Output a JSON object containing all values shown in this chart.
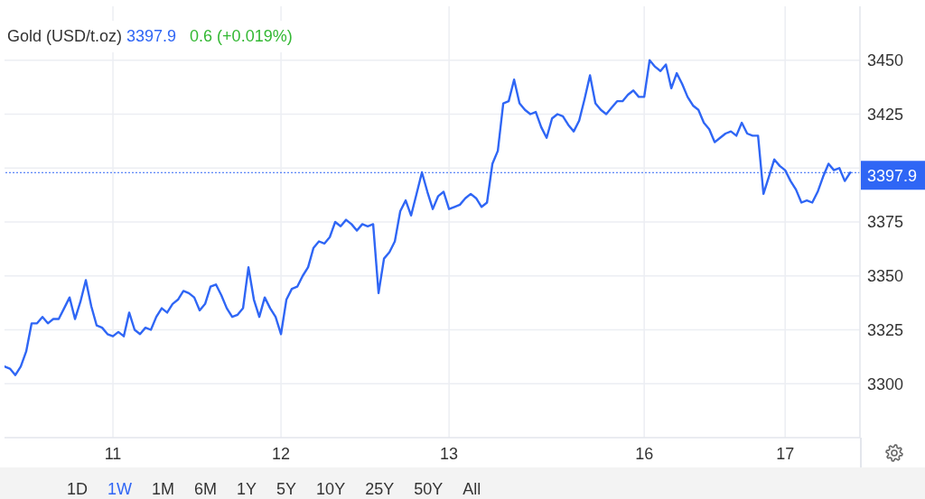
{
  "chart_data": {
    "type": "line",
    "title": "Gold (USD/t.oz)",
    "annotations": [
      "3397.9",
      "0.6 (+0.019%)",
      "1D",
      "1W",
      "1M",
      "6M",
      "1Y",
      "5Y",
      "10Y",
      "25Y",
      "50Y",
      "All"
    ],
    "categories": [
      null,
      null,
      null,
      null,
      null,
      null,
      null,
      null,
      null,
      null,
      null,
      null,
      null,
      null,
      null,
      null,
      null,
      null,
      null,
      null,
      "11",
      null,
      null,
      null,
      null,
      null,
      null,
      null,
      null,
      null,
      null,
      null,
      null,
      null,
      null,
      null,
      null,
      null,
      null,
      null,
      null,
      null,
      null,
      null,
      null,
      null,
      null,
      null,
      null,
      null,
      null,
      "12",
      null,
      null,
      null,
      null,
      null,
      null,
      null,
      null,
      null,
      null,
      null,
      null,
      null,
      null,
      null,
      null,
      null,
      null,
      null,
      null,
      null,
      null,
      null,
      null,
      null,
      null,
      null,
      null,
      null,
      null,
      "13",
      null,
      null,
      null,
      null,
      null,
      null,
      null,
      null,
      null,
      null,
      null,
      null,
      null,
      null,
      null,
      null,
      null,
      null,
      null,
      null,
      null,
      null,
      null,
      null,
      null,
      null,
      null,
      null,
      null,
      null,
      null,
      null,
      null,
      null,
      null,
      "16",
      null,
      null,
      null,
      null,
      null,
      null,
      null,
      null,
      null,
      null,
      null,
      null,
      null,
      null,
      null,
      null,
      null,
      null,
      null,
      null,
      null,
      null,
      null,
      null,
      null,
      "17",
      null,
      null,
      null,
      null,
      null,
      null,
      null,
      null,
      null,
      null,
      null,
      null
    ],
    "values": [
      3308,
      3307,
      3304,
      3308,
      3315,
      3328,
      3328,
      3331,
      3328,
      3330,
      3330,
      3335,
      3340,
      3330,
      3338,
      3348,
      3336,
      3327,
      3326,
      3323,
      3322,
      3324,
      3322,
      3333,
      3325,
      3323,
      3326,
      3325,
      3331,
      3335,
      3333,
      3337,
      3339,
      3343,
      3342,
      3340,
      3334,
      3337,
      3345,
      3346,
      3341,
      3335,
      3331,
      3332,
      3335,
      3354,
      3339,
      3331,
      3340,
      3335,
      3331,
      3323,
      3339,
      3344,
      3345,
      3350,
      3354,
      3363,
      3366,
      3365,
      3368,
      3375,
      3373,
      3376,
      3374,
      3371,
      3374,
      3373,
      3374,
      3342,
      3358,
      3361,
      3366,
      3380,
      3385,
      3378,
      3388,
      3398,
      3389,
      3381,
      3387,
      3389,
      3381,
      3382,
      3383,
      3386,
      3388,
      3386,
      3382,
      3384,
      3402,
      3408,
      3430,
      3431,
      3441,
      3430,
      3427,
      3425,
      3426,
      3419,
      3414,
      3423,
      3425,
      3424,
      3420,
      3417,
      3422,
      3432,
      3443,
      3430,
      3427,
      3425,
      3428,
      3431,
      3431,
      3434,
      3436,
      3433,
      3433,
      3450,
      3447,
      3445,
      3448,
      3437,
      3444,
      3439,
      3433,
      3429,
      3427,
      3421,
      3418,
      3412,
      3414,
      3416,
      3417,
      3415,
      3421,
      3416,
      3415,
      3415,
      3388,
      3396,
      3404,
      3401,
      3399,
      3394,
      3390,
      3384,
      3385,
      3384,
      3389,
      3396,
      3402,
      3399,
      3400,
      3394,
      3397.9
    ],
    "color": "#2f66f5",
    "ylim": [
      3275,
      3475
    ],
    "yticks": [
      3300,
      3325,
      3350,
      3375,
      {
        "value": 3400,
        "label": null
      },
      3425,
      3450
    ],
    "grid": true,
    "marker": "none",
    "line_style": "solid",
    "ref_lines": [
      {
        "axis": "y",
        "value": 3397.9,
        "label": "3397.9",
        "color": "#2f66f5",
        "line_style": "dotted"
      }
    ]
  }
}
